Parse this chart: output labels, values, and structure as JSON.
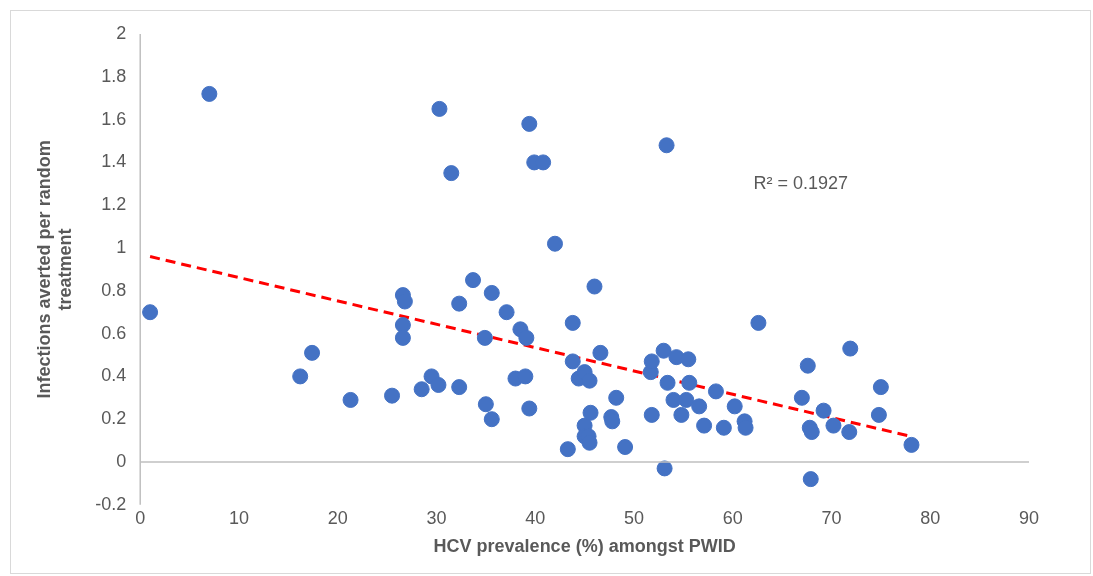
{
  "chart_data": {
    "type": "scatter",
    "xlabel": "HCV prevalence (%) amongst PWID",
    "ylabel": "Infections averted per random treatment",
    "xlim": [
      0,
      90
    ],
    "xticks": [
      0,
      10,
      20,
      30,
      40,
      50,
      60,
      70,
      80,
      90
    ],
    "ylim": [
      -0.2,
      2
    ],
    "yticks": [
      -0.2,
      0,
      0.2,
      0.4,
      0.6,
      0.8,
      1,
      1.2,
      1.4,
      1.6,
      1.8,
      2
    ],
    "grid": false,
    "legend": false,
    "marker": "circle",
    "annotations": [
      "R² = 0.1927"
    ],
    "series": [
      {
        "color": "#4472c4",
        "x": [
          1,
          7,
          30.3,
          31.5,
          39.4,
          39.9,
          40.8,
          53.3,
          42,
          16.2,
          17.4,
          21.3,
          25.5,
          26.6,
          26.8,
          26.6,
          26.6,
          28.5,
          29.5,
          30.2,
          32.3,
          32.3,
          33.7,
          35.6,
          34.9,
          35,
          35.6,
          37.1,
          38,
          38.5,
          39,
          39.1,
          39.4,
          43.3,
          43.8,
          43.8,
          44.4,
          45,
          45.5,
          45,
          45,
          45.4,
          45.5,
          45.6,
          46,
          46.6,
          47.7,
          47.8,
          48.2,
          49.1,
          51.7,
          51.8,
          51.8,
          53,
          53.4,
          53.1,
          54,
          54.3,
          54.8,
          55.3,
          55.5,
          55.6,
          56.6,
          57.1,
          58.3,
          59.1,
          60.2,
          61.2,
          61.3,
          62.6,
          67,
          67.6,
          67.8,
          68,
          67.9,
          69.2,
          70.2,
          71.8,
          71.9,
          74.8,
          75,
          78.1
        ],
        "values": [
          0.7,
          1.72,
          1.65,
          1.35,
          1.58,
          1.4,
          1.4,
          1.48,
          1.02,
          0.4,
          0.51,
          0.29,
          0.31,
          0.78,
          0.75,
          0.64,
          0.58,
          0.34,
          0.4,
          0.36,
          0.35,
          0.74,
          0.85,
          0.79,
          0.58,
          0.27,
          0.2,
          0.7,
          0.39,
          0.62,
          0.4,
          0.58,
          0.25,
          0.06,
          0.65,
          0.47,
          0.39,
          0.42,
          0.38,
          0.17,
          0.12,
          0.12,
          0.09,
          0.23,
          0.82,
          0.51,
          0.21,
          0.19,
          0.3,
          0.07,
          0.42,
          0.47,
          0.22,
          0.52,
          0.37,
          -0.03,
          0.29,
          0.49,
          0.22,
          0.29,
          0.48,
          0.37,
          0.26,
          0.17,
          0.33,
          0.16,
          0.26,
          0.19,
          0.16,
          0.65,
          0.3,
          0.45,
          0.16,
          0.14,
          -0.08,
          0.24,
          0.17,
          0.14,
          0.53,
          0.22,
          0.35,
          0.08
        ]
      },
      {
        "type": "line",
        "color": "#ff0000",
        "line_style": "dashed",
        "marker": "none",
        "x": [
          1,
          78
        ],
        "values": [
          0.96,
          0.12
        ]
      }
    ]
  }
}
